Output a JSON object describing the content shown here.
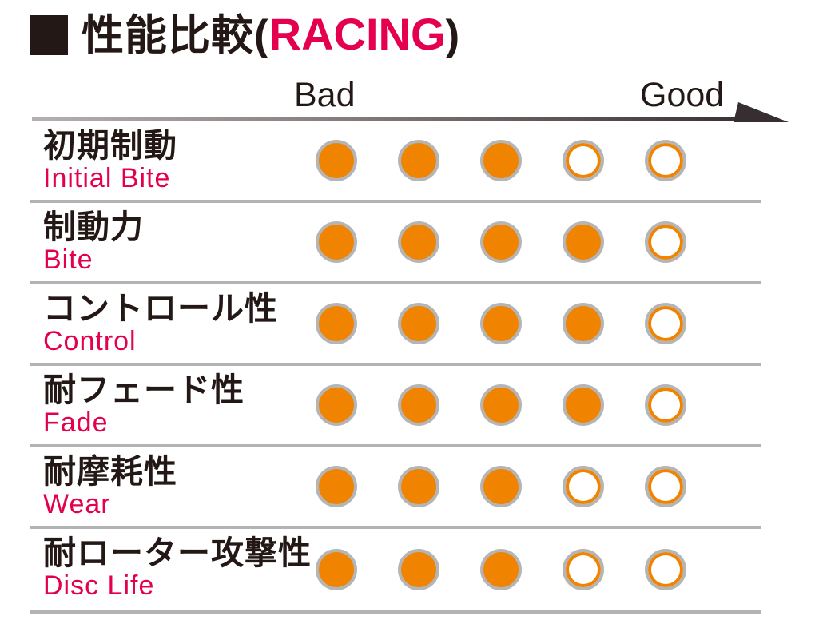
{
  "title": {
    "jp": "性能比較",
    "paren_open": "(",
    "highlight": "RACING",
    "paren_close": ")"
  },
  "icons": {
    "title_bullet": "black-square",
    "scale_arrow": "right-arrow-gradient"
  },
  "scale": {
    "bad_label": "Bad",
    "good_label": "Good"
  },
  "rating_max": 5,
  "rows": [
    {
      "jp": "初期制動",
      "en": "Initial Bite",
      "value": 3
    },
    {
      "jp": "制動力",
      "en": "Bite",
      "value": 4
    },
    {
      "jp": "コントロール性",
      "en": "Control",
      "value": 4
    },
    {
      "jp": "耐フェード性",
      "en": "Fade",
      "value": 4
    },
    {
      "jp": "耐摩耗性",
      "en": "Wear",
      "value": 3
    },
    {
      "jp": "耐ローター攻撃性",
      "en": "Disc Life",
      "value": 3
    }
  ],
  "colors": {
    "accent_pink": "#e4004f",
    "dot_orange": "#f08300",
    "dot_ring_gray": "#b5b5b5",
    "separator_gray": "#b3b3b3",
    "text_black": "#231815",
    "arrow_dark": "#3a3132",
    "arrow_light": "#b6b1b1"
  },
  "chart_data": {
    "type": "table",
    "subtype": "dot-rating",
    "title": "性能比較（RACING）",
    "scale": {
      "min_label": "Bad",
      "max_label": "Good",
      "max": 5
    },
    "categories": [
      "初期制動 / Initial Bite",
      "制動力 / Bite",
      "コントロール性 / Control",
      "耐フェード性 / Fade",
      "耐摩耗性 / Wear",
      "耐ローター攻撃性 / Disc Life"
    ],
    "values": [
      3,
      4,
      4,
      4,
      3,
      3
    ],
    "legend": "filled orange dot = rating point, outlined dot = empty",
    "layout": "rows separated by gray horizontal rules, Bad at left of dot scale, Good at right with arrow"
  }
}
